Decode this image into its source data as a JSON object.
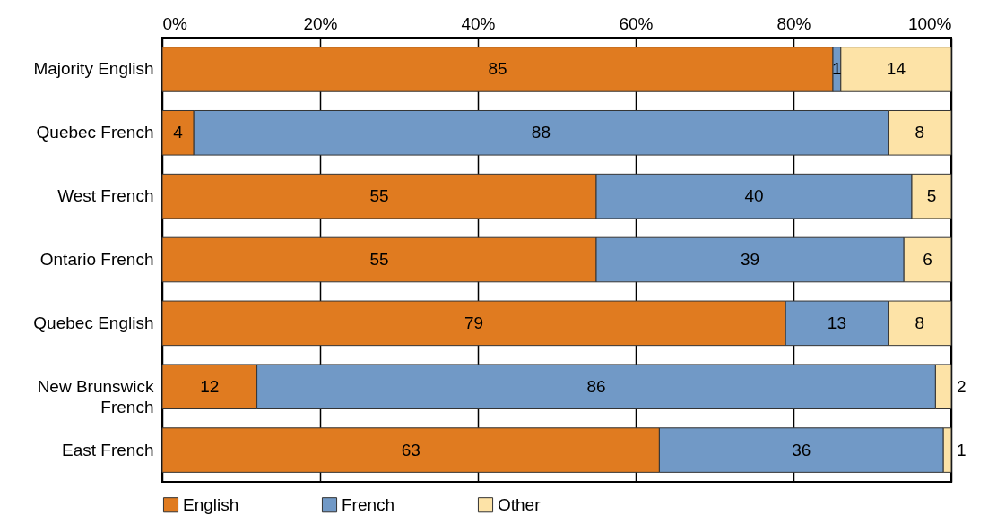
{
  "chart_data": {
    "type": "bar",
    "orientation": "horizontal",
    "stacked": true,
    "data_labels": true,
    "grid": "x",
    "legend": "bottom",
    "categories": [
      "Majority English",
      "Quebec French",
      "West French",
      "Ontario French",
      "Quebec English",
      "New Brunswick French",
      "East French"
    ],
    "series": [
      {
        "name": "English",
        "color": "#e07b20",
        "values": [
          85,
          4,
          55,
          55,
          79,
          12,
          63
        ]
      },
      {
        "name": "French",
        "color": "#7199c6",
        "values": [
          1,
          88,
          40,
          39,
          13,
          86,
          36
        ]
      },
      {
        "name": "Other",
        "color": "#fde3a7",
        "values": [
          14,
          8,
          5,
          6,
          8,
          2,
          1
        ]
      }
    ],
    "xlim": [
      0,
      100
    ],
    "xticks": [
      {
        "value": 0,
        "label": "0%"
      },
      {
        "value": 20,
        "label": "20%"
      },
      {
        "value": 40,
        "label": "40%"
      },
      {
        "value": 60,
        "label": "60%"
      },
      {
        "value": 80,
        "label": "80%"
      },
      {
        "value": 100,
        "label": "100%"
      }
    ]
  }
}
